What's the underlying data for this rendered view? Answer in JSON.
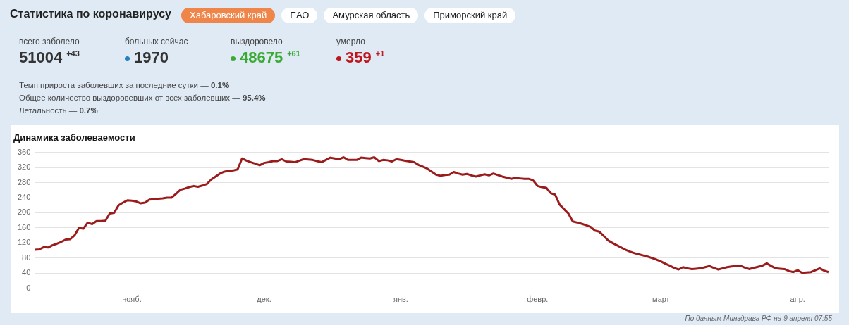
{
  "chart_data": [
    {
      "type": "other",
      "title": "Статистика по коронавирусу",
      "annotations": [
        "Хабаровский край",
        "ЕАО",
        "Амурская область",
        "Приморский край",
        "всего заболело",
        "51004",
        "+43",
        "больных сейчас",
        "1970",
        "выздоровело",
        "48675",
        "+61",
        "умерло",
        "359",
        "+1",
        "Темп прироста заболевших за последние сутки — 0.1%",
        "Общее количество выздоровевших от всех заболевших — 95.4%",
        "Летальность — 0.7%"
      ]
    },
    {
      "type": "line",
      "title": "Динамика заболеваемости",
      "categories": [
        null,
        null,
        null,
        null,
        null,
        null,
        null,
        null,
        null,
        null,
        null,
        null,
        null,
        null,
        null,
        null,
        null,
        null,
        null,
        null,
        null,
        null,
        "нояб.",
        null,
        null,
        null,
        null,
        null,
        null,
        null,
        null,
        null,
        null,
        null,
        null,
        null,
        null,
        null,
        null,
        null,
        null,
        null,
        null,
        null,
        null,
        null,
        null,
        null,
        null,
        null,
        null,
        null,
        "дек.",
        null,
        null,
        null,
        null,
        null,
        null,
        null,
        null,
        null,
        null,
        null,
        null,
        null,
        null,
        null,
        null,
        null,
        null,
        null,
        null,
        null,
        null,
        null,
        null,
        null,
        null,
        null,
        null,
        null,
        null,
        "янв.",
        null,
        null,
        null,
        null,
        null,
        null,
        null,
        null,
        null,
        null,
        null,
        null,
        null,
        null,
        null,
        null,
        null,
        null,
        null,
        null,
        null,
        null,
        null,
        null,
        null,
        null,
        null,
        null,
        null,
        null,
        "февр.",
        null,
        null,
        null,
        null,
        null,
        null,
        null,
        null,
        null,
        null,
        null,
        null,
        null,
        null,
        null,
        null,
        null,
        null,
        null,
        null,
        null,
        null,
        null,
        null,
        null,
        null,
        null,
        "март",
        null,
        null,
        null,
        null,
        null,
        null,
        null,
        null,
        null,
        null,
        null,
        null,
        null,
        null,
        null,
        null,
        null,
        null,
        null,
        null,
        null,
        null,
        null,
        null,
        null,
        null,
        null,
        null,
        null,
        null,
        "апр.",
        null,
        null,
        null,
        null,
        null,
        null,
        null
      ],
      "series": [
        {
          "color": "#9b1c1c",
          "values": [
            102,
            103,
            109,
            108,
            114,
            118,
            123,
            129,
            130,
            140,
            160,
            158,
            174,
            170,
            178,
            178,
            179,
            198,
            200,
            220,
            227,
            233,
            232,
            230,
            225,
            227,
            235,
            236,
            237,
            238,
            240,
            240,
            250,
            261,
            264,
            268,
            271,
            269,
            272,
            276,
            288,
            296,
            304,
            309,
            311,
            312,
            315,
            344,
            338,
            334,
            330,
            326,
            332,
            334,
            337,
            337,
            342,
            336,
            335,
            334,
            338,
            342,
            341,
            340,
            337,
            334,
            340,
            346,
            344,
            342,
            347,
            340,
            340,
            340,
            346,
            345,
            344,
            347,
            337,
            340,
            339,
            336,
            342,
            340,
            338,
            336,
            334,
            327,
            322,
            317,
            309,
            301,
            298,
            300,
            301,
            308,
            304,
            301,
            303,
            299,
            296,
            299,
            302,
            299,
            304,
            300,
            296,
            293,
            290,
            292,
            291,
            290,
            290,
            286,
            271,
            268,
            266,
            252,
            248,
            222,
            210,
            198,
            177,
            174,
            171,
            167,
            163,
            153,
            150,
            139,
            127,
            120,
            114,
            108,
            102,
            97,
            93,
            90,
            87,
            84,
            80,
            76,
            71,
            65,
            60,
            54,
            50,
            56,
            53,
            51,
            52,
            53,
            56,
            59,
            54,
            50,
            53,
            56,
            58,
            59,
            60,
            55,
            51,
            54,
            57,
            60,
            66,
            59,
            53,
            52,
            51,
            46,
            43,
            48,
            41,
            42,
            43,
            48,
            53,
            47,
            43
          ]
        }
      ],
      "ylim": [
        0,
        360
      ],
      "yticks": [
        0,
        40,
        80,
        120,
        160,
        200,
        240,
        280,
        320,
        360
      ],
      "grid": "y",
      "legend": false,
      "marker": "none",
      "line_style": "solid",
      "annotations": [
        "По данным Минздрава РФ на 9 апреля 07:55"
      ]
    }
  ]
}
